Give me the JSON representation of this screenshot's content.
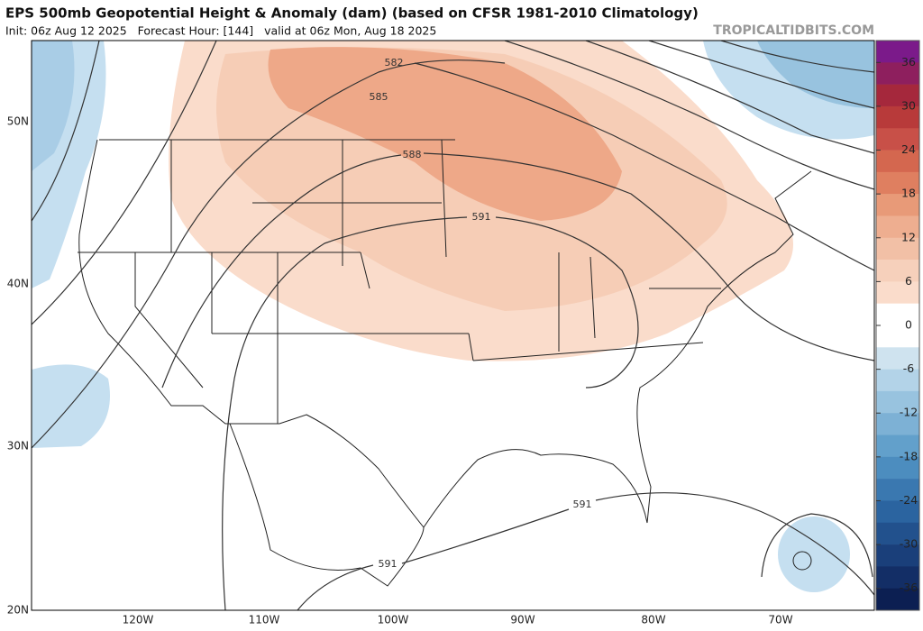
{
  "header": {
    "title": "EPS 500mb Geopotential Height & Anomaly (dam) (based on CFSR 1981-2010 Climatology)",
    "subtitle": "Init: 06z Aug 12 2025   Forecast Hour: [144]   valid at 06z Mon, Aug 18 2025",
    "watermark": "TROPICALTIDBITS.COM"
  },
  "map": {
    "lat_labels": [
      "50N",
      "40N",
      "30N",
      "20N"
    ],
    "lon_labels": [
      "120W",
      "110W",
      "100W",
      "90W",
      "80W",
      "70W"
    ],
    "contour_labels": [
      "582",
      "585",
      "588",
      "591",
      "591",
      "591"
    ]
  },
  "colorbar": {
    "lim": [
      -39,
      39
    ],
    "ticks": [
      36,
      30,
      24,
      18,
      12,
      6,
      0,
      -6,
      -12,
      -18,
      -24,
      -30,
      -36
    ],
    "colors": [
      "#7b1a8a",
      "#8e1f5e",
      "#a5283c",
      "#b83a3a",
      "#c85048",
      "#d4674f",
      "#df7f60",
      "#e89a78",
      "#eeae90",
      "#f2c0a6",
      "#f6d0bb",
      "#fadccb",
      "#ffffff",
      "#ffffff",
      "#cfe3ef",
      "#b3d3e8",
      "#98c3df",
      "#7db1d5",
      "#62a0cb",
      "#4c8dbf",
      "#3a78b0",
      "#2b64a0",
      "#22518d",
      "#1a3f7a",
      "#132e66",
      "#0c1f52"
    ]
  }
}
